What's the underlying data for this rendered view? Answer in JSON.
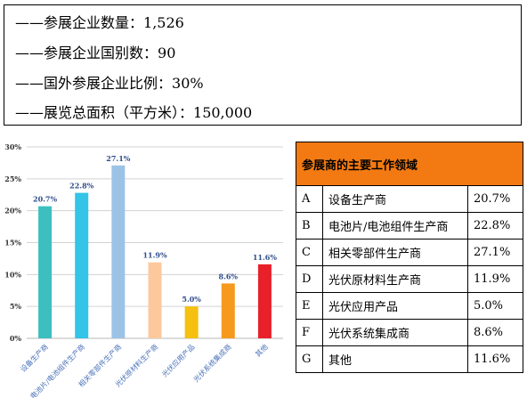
{
  "stats": [
    {
      "label": "——参展企业数量：",
      "value": "1,526"
    },
    {
      "label": "——参展企业国别数：",
      "value": "90"
    },
    {
      "label": "——国外参展企业比例：",
      "value": "30%"
    },
    {
      "label": "——展览总面积（平方米）：",
      "value": "150,000"
    }
  ],
  "table": {
    "header": "参展商的主要工作领域",
    "rows": [
      {
        "code": "A",
        "name": "设备生产商",
        "pct": "20.7%"
      },
      {
        "code": "B",
        "name": "电池片/电池组件生产商",
        "pct": "22.8%"
      },
      {
        "code": "C",
        "name": "相关零部件生产商",
        "pct": "27.1%"
      },
      {
        "code": "D",
        "name": "光伏原材料生产商",
        "pct": "11.9%"
      },
      {
        "code": "E",
        "name": "光伏应用产品",
        "pct": "5.0%"
      },
      {
        "code": "F",
        "name": "光伏系统集成商",
        "pct": "8.6%"
      },
      {
        "code": "G",
        "name": "其他",
        "pct": "11.6%"
      }
    ]
  },
  "chart_data": {
    "type": "bar",
    "categories": [
      "设备生产商",
      "电池片/电池组件生产商",
      "相关零部件生产商",
      "光伏原材料生产商",
      "光伏应用产品",
      "光伏系统集成商",
      "其他"
    ],
    "values": [
      20.7,
      22.8,
      27.1,
      11.9,
      5.0,
      8.6,
      11.6
    ],
    "data_labels": [
      "20.7%",
      "22.8%",
      "27.1%",
      "11.9%",
      "5.0%",
      "8.6%",
      "11.6%"
    ],
    "colors": [
      "#3dbfbf",
      "#33c4e8",
      "#9cc3e6",
      "#fdc99c",
      "#f5c010",
      "#f59a1e",
      "#e8202a"
    ],
    "yticks": [
      0,
      5,
      10,
      15,
      20,
      25,
      30
    ],
    "ytick_labels": [
      "0%",
      "5%",
      "10%",
      "15%",
      "20%",
      "25%",
      "30%"
    ],
    "ylim": [
      0,
      30
    ],
    "grid": true,
    "label_color": "#2e4d8c",
    "axis_label_color": "#4a72b8",
    "title": "",
    "xlabel": "",
    "ylabel": ""
  }
}
